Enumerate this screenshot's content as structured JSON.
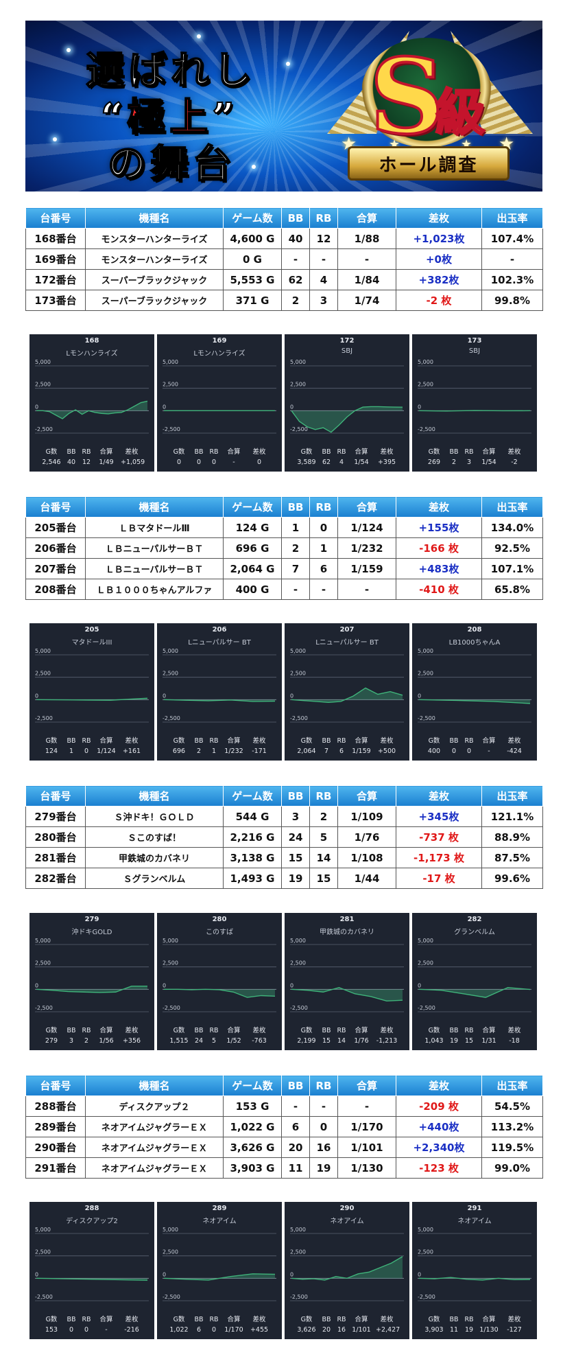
{
  "banner": {
    "line1": "選ばれし",
    "line2_open": "“",
    "line2_red": "極上",
    "line2_close": "”",
    "line3": "の舞台",
    "badge_letter": "S",
    "badge_kanji": "級",
    "ribbon": "ホール調査"
  },
  "headers": [
    "台番号",
    "機種名",
    "ゲーム数",
    "BB",
    "RB",
    "合算",
    "差枚",
    "出玉率"
  ],
  "sections": [
    {
      "rows": [
        {
          "no": "168番台",
          "model": "モンスターハンターライズ",
          "games": "4,600 G",
          "bb": "40",
          "rb": "12",
          "combined": "1/88",
          "diff": "+1,023枚",
          "rate": "107.4%",
          "sign": "pos"
        },
        {
          "no": "169番台",
          "model": "モンスターハンターライズ",
          "games": "0 G",
          "bb": "-",
          "rb": "-",
          "combined": "-",
          "diff": "+0枚",
          "rate": "-",
          "sign": "pos"
        },
        {
          "no": "172番台",
          "model": "スーパーブラックジャック",
          "games": "5,553 G",
          "bb": "62",
          "rb": "4",
          "combined": "1/84",
          "diff": "+382枚",
          "rate": "102.3%",
          "sign": "pos"
        },
        {
          "no": "173番台",
          "model": "スーパーブラックジャック",
          "games": "371 G",
          "bb": "2",
          "rb": "3",
          "combined": "1/74",
          "diff": "-2 枚",
          "rate": "99.8%",
          "sign": "neg"
        }
      ],
      "charts": [
        {
          "num": "168",
          "name": "Lモンハンライズ",
          "games": "2,546",
          "bb": "40",
          "rb": "12",
          "combined": "1/49",
          "diff": "+1,059",
          "points": [
            0,
            0,
            -100,
            -500,
            -900,
            -300,
            100,
            -400,
            0,
            -200,
            -300,
            -350,
            -250,
            -200,
            100,
            500,
            900,
            1059
          ]
        },
        {
          "num": "169",
          "name": "Lモンハンライズ",
          "games": "0",
          "bb": "0",
          "rb": "0",
          "combined": "-",
          "diff": "0",
          "points": [
            0,
            0
          ]
        },
        {
          "num": "172",
          "name": "SBJ",
          "games": "3,589",
          "bb": "62",
          "rb": "4",
          "combined": "1/54",
          "diff": "+395",
          "points": [
            0,
            -1200,
            -1800,
            -2100,
            -1900,
            -2400,
            -1600,
            -700,
            0,
            400,
            450,
            450,
            420,
            400,
            395
          ]
        },
        {
          "num": "173",
          "name": "SBJ",
          "games": "269",
          "bb": "2",
          "rb": "3",
          "combined": "1/54",
          "diff": "-2",
          "points": [
            0,
            -40,
            20,
            -10,
            -2
          ]
        }
      ]
    },
    {
      "rows": [
        {
          "no": "205番台",
          "model": "ＬＢマタドールⅢ",
          "games": "124 G",
          "bb": "1",
          "rb": "0",
          "combined": "1/124",
          "diff": "+155枚",
          "rate": "134.0%",
          "sign": "pos"
        },
        {
          "no": "206番台",
          "model": "ＬＢニューパルサーＢＴ",
          "games": "696 G",
          "bb": "2",
          "rb": "1",
          "combined": "1/232",
          "diff": "-166 枚",
          "rate": "92.5%",
          "sign": "neg"
        },
        {
          "no": "207番台",
          "model": "ＬＢニューパルサーＢＴ",
          "games": "2,064 G",
          "bb": "7",
          "rb": "6",
          "combined": "1/159",
          "diff": "+483枚",
          "rate": "107.1%",
          "sign": "pos"
        },
        {
          "no": "208番台",
          "model": "ＬＢ１０００ちゃんアルファ",
          "games": "400 G",
          "bb": "-",
          "rb": "-",
          "combined": "-",
          "diff": "-410 枚",
          "rate": "65.8%",
          "sign": "neg"
        }
      ],
      "charts": [
        {
          "num": "205",
          "name": "マタドールIII",
          "games": "124",
          "bb": "1",
          "rb": "0",
          "combined": "1/124",
          "diff": "+161",
          "points": [
            0,
            -30,
            -60,
            161
          ]
        },
        {
          "num": "206",
          "name": "Lニューパルサー BT",
          "games": "696",
          "bb": "2",
          "rb": "1",
          "combined": "1/232",
          "diff": "-171",
          "points": [
            0,
            -60,
            -120,
            -40,
            -200,
            -171
          ]
        },
        {
          "num": "207",
          "name": "Lニューパルサー BT",
          "games": "2,064",
          "bb": "7",
          "rb": "6",
          "combined": "1/159",
          "diff": "+500",
          "points": [
            0,
            -100,
            -200,
            -300,
            -200,
            400,
            1300,
            600,
            900,
            500
          ]
        },
        {
          "num": "208",
          "name": "LB1000ちゃんA",
          "games": "400",
          "bb": "0",
          "rb": "0",
          "combined": "-",
          "diff": "-424",
          "points": [
            0,
            -80,
            -200,
            -424
          ]
        }
      ]
    },
    {
      "rows": [
        {
          "no": "279番台",
          "model": "Ｓ沖ドキ！ＧＯＬＤ",
          "games": "544 G",
          "bb": "3",
          "rb": "2",
          "combined": "1/109",
          "diff": "+345枚",
          "rate": "121.1%",
          "sign": "pos"
        },
        {
          "no": "280番台",
          "model": "Ｓこのすば！",
          "games": "2,216 G",
          "bb": "24",
          "rb": "5",
          "combined": "1/76",
          "diff": "-737 枚",
          "rate": "88.9%",
          "sign": "neg"
        },
        {
          "no": "281番台",
          "model": "甲鉄城のカバネリ",
          "games": "3,138 G",
          "bb": "15",
          "rb": "14",
          "combined": "1/108",
          "diff": "-1,173 枚",
          "rate": "87.5%",
          "sign": "neg"
        },
        {
          "no": "282番台",
          "model": "Ｓグランベルム",
          "games": "1,493 G",
          "bb": "19",
          "rb": "15",
          "combined": "1/44",
          "diff": "-17 枚",
          "rate": "99.6%",
          "sign": "neg"
        }
      ],
      "charts": [
        {
          "num": "279",
          "name": "沖ドキGOLD",
          "games": "279",
          "bb": "3",
          "rb": "2",
          "combined": "1/56",
          "diff": "+356",
          "points": [
            0,
            -100,
            -250,
            -300,
            -350,
            -300,
            356,
            356
          ]
        },
        {
          "num": "280",
          "name": "このすば",
          "games": "1,515",
          "bb": "24",
          "rb": "5",
          "combined": "1/52",
          "diff": "-763",
          "points": [
            0,
            0,
            -50,
            0,
            -50,
            -300,
            -900,
            -700,
            -763
          ]
        },
        {
          "num": "281",
          "name": "甲鉄城のカバネリ",
          "games": "2,199",
          "bb": "15",
          "rb": "14",
          "combined": "1/76",
          "diff": "-1,213",
          "points": [
            0,
            -100,
            -300,
            200,
            -500,
            -800,
            -1300,
            -1213
          ]
        },
        {
          "num": "282",
          "name": "グランベルム",
          "games": "1,043",
          "bb": "19",
          "rb": "15",
          "combined": "1/31",
          "diff": "-18",
          "points": [
            0,
            -100,
            -500,
            -900,
            200,
            -18
          ]
        }
      ]
    },
    {
      "rows": [
        {
          "no": "288番台",
          "model": "ディスクアップ２",
          "games": "153 G",
          "bb": "-",
          "rb": "-",
          "combined": "-",
          "diff": "-209 枚",
          "rate": "54.5%",
          "sign": "neg"
        },
        {
          "no": "289番台",
          "model": "ネオアイムジャグラーＥＸ",
          "games": "1,022 G",
          "bb": "6",
          "rb": "0",
          "combined": "1/170",
          "diff": "+440枚",
          "rate": "113.2%",
          "sign": "pos"
        },
        {
          "no": "290番台",
          "model": "ネオアイムジャグラーＥＸ",
          "games": "3,626 G",
          "bb": "20",
          "rb": "16",
          "combined": "1/101",
          "diff": "+2,340枚",
          "rate": "119.5%",
          "sign": "pos"
        },
        {
          "no": "291番台",
          "model": "ネオアイムジャグラーＥＸ",
          "games": "3,903 G",
          "bb": "11",
          "rb": "19",
          "combined": "1/130",
          "diff": "-123 枚",
          "rate": "99.0%",
          "sign": "neg"
        }
      ],
      "charts": [
        {
          "num": "288",
          "name": "ディスクアップ2",
          "games": "153",
          "bb": "0",
          "rb": "0",
          "combined": "-",
          "diff": "-216",
          "points": [
            0,
            -100,
            -216
          ]
        },
        {
          "num": "289",
          "name": "ネオアイム",
          "games": "1,022",
          "bb": "6",
          "rb": "0",
          "combined": "1/170",
          "diff": "+455",
          "points": [
            0,
            -100,
            -200,
            200,
            500,
            455
          ]
        },
        {
          "num": "290",
          "name": "ネオアイム",
          "games": "3,626",
          "bb": "20",
          "rb": "16",
          "combined": "1/101",
          "diff": "+2,427",
          "points": [
            0,
            -100,
            -50,
            -200,
            200,
            0,
            500,
            700,
            1200,
            1700,
            2427
          ]
        },
        {
          "num": "291",
          "name": "ネオアイム",
          "games": "3,903",
          "bb": "11",
          "rb": "19",
          "combined": "1/130",
          "diff": "-127",
          "points": [
            0,
            -50,
            100,
            -100,
            -200,
            0,
            -150,
            -127
          ]
        }
      ]
    }
  ],
  "chart_axis": {
    "ticks": [
      "5,000",
      "2,500",
      "0",
      "-2,500"
    ],
    "stat_labels": [
      "G数",
      "BB",
      "RB",
      "合算",
      "差枚"
    ]
  },
  "chart_data": {
    "type": "line",
    "ylim": [
      -2500,
      5000
    ],
    "series": [
      {
        "name": "168",
        "values": [
          0,
          0,
          -100,
          -500,
          -900,
          -300,
          100,
          -400,
          0,
          -200,
          -300,
          -350,
          -250,
          -200,
          100,
          500,
          900,
          1059
        ]
      },
      {
        "name": "169",
        "values": [
          0,
          0
        ]
      },
      {
        "name": "172",
        "values": [
          0,
          -1200,
          -1800,
          -2100,
          -1900,
          -2400,
          -1600,
          -700,
          0,
          400,
          450,
          450,
          420,
          400,
          395
        ]
      },
      {
        "name": "173",
        "values": [
          0,
          -40,
          20,
          -10,
          -2
        ]
      },
      {
        "name": "205",
        "values": [
          0,
          -30,
          -60,
          161
        ]
      },
      {
        "name": "206",
        "values": [
          0,
          -60,
          -120,
          -40,
          -200,
          -171
        ]
      },
      {
        "name": "207",
        "values": [
          0,
          -100,
          -200,
          -300,
          -200,
          400,
          1300,
          600,
          900,
          500
        ]
      },
      {
        "name": "208",
        "values": [
          0,
          -80,
          -200,
          -424
        ]
      },
      {
        "name": "279",
        "values": [
          0,
          -100,
          -250,
          -300,
          -350,
          -300,
          356,
          356
        ]
      },
      {
        "name": "280",
        "values": [
          0,
          0,
          -50,
          0,
          -50,
          -300,
          -900,
          -700,
          -763
        ]
      },
      {
        "name": "281",
        "values": [
          0,
          -100,
          -300,
          200,
          -500,
          -800,
          -1300,
          -1213
        ]
      },
      {
        "name": "282",
        "values": [
          0,
          -100,
          -500,
          -900,
          200,
          -18
        ]
      },
      {
        "name": "288",
        "values": [
          0,
          -100,
          -216
        ]
      },
      {
        "name": "289",
        "values": [
          0,
          -100,
          -200,
          200,
          500,
          455
        ]
      },
      {
        "name": "290",
        "values": [
          0,
          -100,
          -50,
          -200,
          200,
          0,
          500,
          700,
          1200,
          1700,
          2427
        ]
      },
      {
        "name": "291",
        "values": [
          0,
          -50,
          100,
          -100,
          -200,
          0,
          -150,
          -127
        ]
      }
    ]
  },
  "colors": {
    "header_blue": "#1a7fd0",
    "positive": "#1a2fc4",
    "negative": "#e01818",
    "panel_bg": "#1e2430",
    "line": "#3fb37a"
  }
}
